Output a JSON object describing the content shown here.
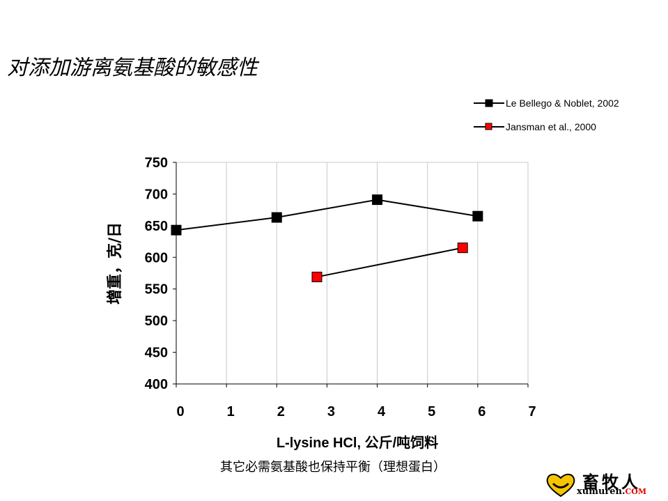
{
  "slide": {
    "title": "对添加游离氨基酸的敏感性",
    "caption": "其它必需氨基酸也保持平衡（理想蛋白）"
  },
  "logo": {
    "text_cn": "畜牧人",
    "text_en": "xumuren.",
    "text_domain": "COM",
    "icon": "heart-logo-icon"
  },
  "chart_data": {
    "type": "line",
    "xlabel": "L-lysine HCl, 公斤/吨饲料",
    "ylabel": "增重，克/日",
    "xlim": [
      0,
      7
    ],
    "ylim": [
      400,
      750
    ],
    "xticks": [
      0,
      1,
      2,
      3,
      4,
      5,
      6,
      7
    ],
    "yticks": [
      400,
      450,
      500,
      550,
      600,
      650,
      700,
      750
    ],
    "grid": "vertical",
    "legend_position": "top-right",
    "series": [
      {
        "name": "Le Bellego & Noblet, 2002",
        "color": "#000000",
        "marker": "square",
        "points": [
          {
            "x": 0,
            "y": 643
          },
          {
            "x": 2,
            "y": 663
          },
          {
            "x": 4,
            "y": 691
          },
          {
            "x": 6,
            "y": 665
          }
        ]
      },
      {
        "name": "Jansman et al., 2000",
        "color": "#ff0000",
        "marker": "square",
        "points": [
          {
            "x": 2.8,
            "y": 569
          },
          {
            "x": 5.7,
            "y": 615
          }
        ]
      }
    ]
  }
}
